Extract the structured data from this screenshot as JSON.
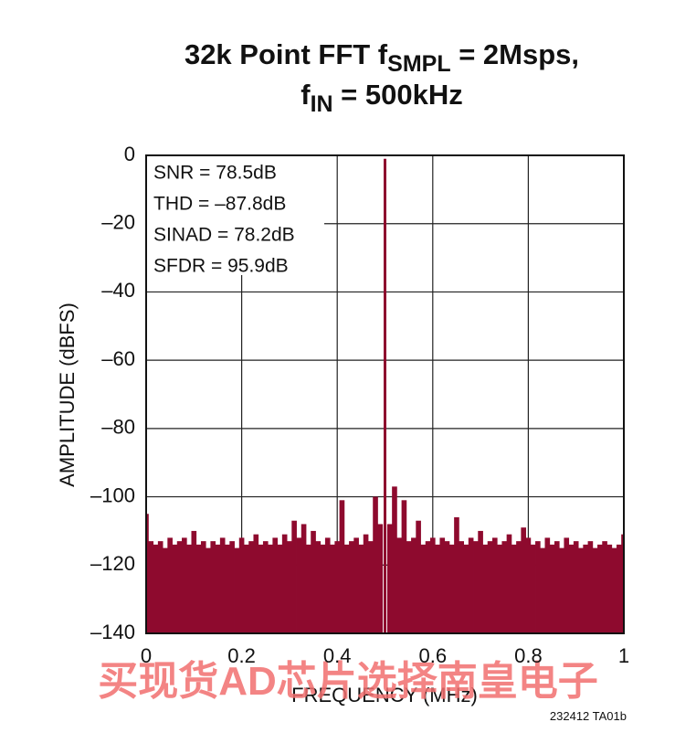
{
  "chart_data": {
    "type": "spectrum",
    "title": [
      {
        "text": "32k Point FFT f"
      },
      {
        "text": "SMPL",
        "sub": true
      },
      {
        "text": " = 2Msps,"
      }
    ],
    "title_line2": [
      {
        "text": "f"
      },
      {
        "text": "IN",
        "sub": true
      },
      {
        "text": " = 500kHz"
      }
    ],
    "xlabel": "FREQUENCY (MHz)",
    "ylabel": "AMPLITUDE (dBFS)",
    "annotations": [
      "SNR = 78.5dB",
      "THD = –87.8dB",
      "SINAD = 78.2dB",
      "SFDR = 95.9dB"
    ],
    "note": "232412 TA01b",
    "watermark": "买现货AD芯片选择南皇电子",
    "color": "#8e0a2e",
    "grid": true,
    "xlim": [
      0,
      1
    ],
    "xticks": [
      0,
      0.2,
      0.4,
      0.6,
      0.8,
      1
    ],
    "ylim": [
      -140,
      0
    ],
    "yticks": [
      0,
      {
        "value": -20,
        "label": "–20"
      },
      {
        "value": -40,
        "label": "–40"
      },
      {
        "value": -60,
        "label": "–60"
      },
      {
        "value": -80,
        "label": "–80"
      },
      {
        "value": -100,
        "label": "–100"
      },
      {
        "value": -120,
        "label": "–120"
      },
      {
        "value": -140,
        "label": "–140"
      }
    ],
    "x": [
      0,
      0.01,
      0.02,
      0.03,
      0.04,
      0.05,
      0.06,
      0.07,
      0.08,
      0.09,
      0.1,
      0.11,
      0.12,
      0.13,
      0.14,
      0.15,
      0.16,
      0.17,
      0.18,
      0.19,
      0.2,
      0.21,
      0.22,
      0.23,
      0.24,
      0.25,
      0.26,
      0.27,
      0.28,
      0.29,
      0.3,
      0.31,
      0.32,
      0.33,
      0.34,
      0.35,
      0.36,
      0.37,
      0.38,
      0.39,
      0.4,
      0.41,
      0.42,
      0.43,
      0.44,
      0.45,
      0.46,
      0.47,
      0.48,
      0.49,
      0.5,
      0.51,
      0.52,
      0.53,
      0.54,
      0.55,
      0.56,
      0.57,
      0.58,
      0.59,
      0.6,
      0.61,
      0.62,
      0.63,
      0.64,
      0.65,
      0.66,
      0.67,
      0.68,
      0.69,
      0.7,
      0.71,
      0.72,
      0.73,
      0.74,
      0.75,
      0.76,
      0.77,
      0.78,
      0.79,
      0.8,
      0.81,
      0.82,
      0.83,
      0.84,
      0.85,
      0.86,
      0.87,
      0.88,
      0.89,
      0.9,
      0.91,
      0.92,
      0.93,
      0.94,
      0.95,
      0.96,
      0.97,
      0.98,
      0.99,
      1
    ],
    "values": [
      -105,
      -113,
      -114,
      -113,
      -115,
      -112,
      -114,
      -113,
      -112,
      -114,
      -110,
      -114,
      -113,
      -115,
      -113,
      -114,
      -112,
      -114,
      -113,
      -115,
      -112,
      -114,
      -113,
      -111,
      -114,
      -113,
      -114,
      -112,
      -114,
      -111,
      -113,
      -107,
      -112,
      -108,
      -114,
      -110,
      -113,
      -114,
      -112,
      -114,
      -113,
      -101,
      -114,
      -113,
      -112,
      -114,
      -111,
      -113,
      -100,
      -108,
      -1,
      -108,
      -97,
      -112,
      -101,
      -113,
      -112,
      -107,
      -114,
      -113,
      -112,
      -114,
      -112,
      -113,
      -114,
      -106,
      -113,
      -114,
      -112,
      -113,
      -110,
      -114,
      -113,
      -112,
      -114,
      -113,
      -111,
      -114,
      -113,
      -109,
      -112,
      -114,
      -113,
      -115,
      -112,
      -114,
      -113,
      -115,
      -112,
      -114,
      -113,
      -115,
      -114,
      -113,
      -115,
      -114,
      -113,
      -114,
      -115,
      -114,
      -111
    ]
  }
}
